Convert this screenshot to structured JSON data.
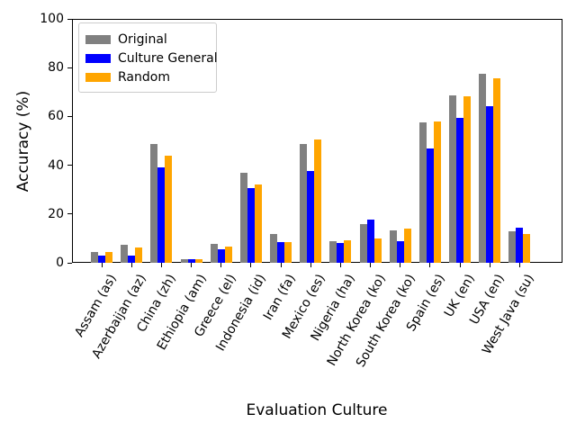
{
  "chart_data": {
    "type": "bar",
    "title": "",
    "xlabel": "Evaluation Culture",
    "ylabel": "Accuracy (%)",
    "ylim": [
      0,
      100
    ],
    "yticks": [
      0,
      20,
      40,
      60,
      80,
      100
    ],
    "grid": false,
    "legend_position": "upper left",
    "categories": [
      "Assam (as)",
      "Azerbaijan (az)",
      "China (zh)",
      "Ethiopia (am)",
      "Greece (el)",
      "Indonesia (id)",
      "Iran (fa)",
      "Mexico (es)",
      "Nigeria (ha)",
      "North Korea (ko)",
      "South Korea (ko)",
      "Spain (es)",
      "UK (en)",
      "USA (en)",
      "West Java (su)"
    ],
    "series": [
      {
        "name": "Original",
        "color": "#808080",
        "values": [
          4.3,
          7.3,
          48.7,
          1.5,
          7.9,
          37.0,
          11.7,
          48.6,
          8.9,
          15.9,
          13.2,
          57.4,
          68.7,
          77.6,
          12.8
        ]
      },
      {
        "name": "Culture General",
        "color": "#0000ff",
        "values": [
          3.1,
          3.0,
          39.0,
          1.4,
          5.7,
          30.7,
          8.6,
          37.6,
          8.3,
          17.8,
          8.9,
          47.0,
          59.5,
          64.2,
          14.4
        ]
      },
      {
        "name": "Random",
        "color": "#ffa500",
        "values": [
          4.4,
          6.3,
          44.0,
          1.5,
          6.7,
          32.1,
          8.4,
          50.6,
          9.1,
          10.1,
          14.1,
          58.0,
          68.1,
          75.7,
          11.7
        ]
      }
    ]
  }
}
